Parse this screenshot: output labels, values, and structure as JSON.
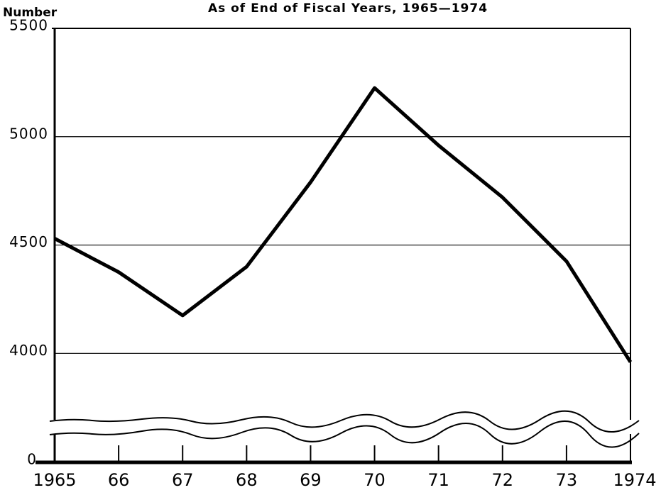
{
  "chart_data": {
    "type": "line",
    "title": "As of End of Fiscal Years, 1965—1974",
    "y_label": "Number",
    "categories": [
      "1965",
      "66",
      "67",
      "68",
      "69",
      "70",
      "71",
      "72",
      "73",
      "1974"
    ],
    "series": [
      {
        "name": "Number",
        "color": "#000000",
        "values": [
          4530,
          4375,
          4175,
          4400,
          4790,
          5225,
          4960,
          4720,
          4425,
          3960
        ]
      }
    ],
    "ylim": [
      3700,
      5500
    ],
    "yticks": [
      0,
      4000,
      4500,
      5000,
      5500
    ],
    "axis_break": true,
    "grid": true
  }
}
